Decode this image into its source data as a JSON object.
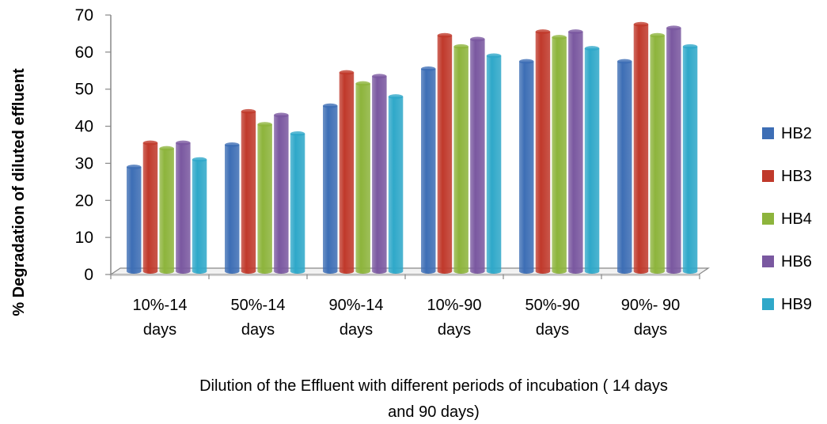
{
  "chart_data": {
    "type": "bar",
    "title": "",
    "xlabel_lines": [
      "Dilution of the Effluent with different periods of incubation ( 14 days",
      "and 90 days)"
    ],
    "ylabel": "% Degradation of diluted effluent",
    "ylim": [
      0,
      70
    ],
    "yticks": [
      "0",
      "10",
      "20",
      "30",
      "40",
      "50",
      "60",
      "70"
    ],
    "categories": [
      [
        "10%-14",
        "days"
      ],
      [
        "50%-14",
        "days"
      ],
      [
        "90%-14",
        "days"
      ],
      [
        "10%-90",
        "days"
      ],
      [
        "50%-90",
        "days"
      ],
      [
        "90%- 90",
        "days"
      ]
    ],
    "series": [
      {
        "name": "HB2",
        "color": "#3d6eb5",
        "values": [
          29,
          35,
          45.5,
          55.5,
          57.5,
          57.5
        ]
      },
      {
        "name": "HB3",
        "color": "#c0392b",
        "values": [
          35.5,
          44,
          54.5,
          64.5,
          65.5,
          67.5
        ]
      },
      {
        "name": "HB4",
        "color": "#8db43c",
        "values": [
          34,
          40.5,
          51.5,
          61.5,
          64,
          64.5
        ]
      },
      {
        "name": "HB6",
        "color": "#7a58a0",
        "values": [
          35.5,
          43,
          53.5,
          63.5,
          65.5,
          66.5
        ]
      },
      {
        "name": "HB9",
        "color": "#2fa8c9",
        "values": [
          31,
          38,
          48,
          59,
          61,
          61.5
        ]
      }
    ],
    "legend_position": "right",
    "grid": false,
    "style": "3d-cylinder"
  }
}
